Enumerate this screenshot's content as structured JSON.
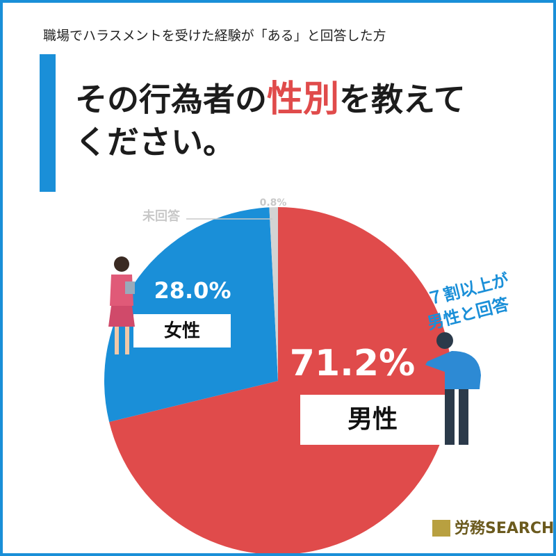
{
  "header": {
    "subtitle": "職場でハラスメントを受けた経験が「ある」と回答した方",
    "title_before": "その行為者の",
    "title_highlight": "性別",
    "title_after": "を教えて",
    "title_line2": "ください。"
  },
  "chart_data": {
    "type": "pie",
    "categories": [
      "男性",
      "女性",
      "未回答"
    ],
    "values": [
      71.2,
      28.0,
      0.8
    ],
    "value_labels": [
      "71.2%",
      "28.0%",
      "0.8%"
    ],
    "colors": [
      "#e04b4b",
      "#1a8fd8",
      "#d3d3d3"
    ],
    "annotation": [
      "７割以上が",
      "男性と回答"
    ]
  },
  "footer": {
    "logo": "労務SEARCH"
  }
}
